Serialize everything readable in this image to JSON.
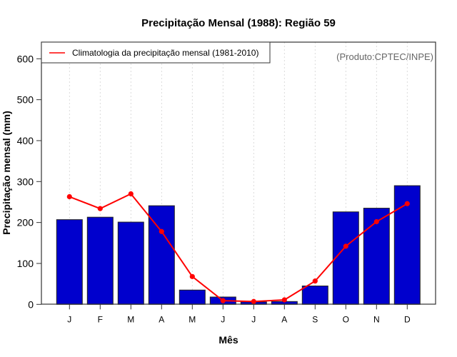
{
  "chart_data": {
    "type": "bar",
    "title": "Precipitação Mensal (1988): Região 59",
    "xlabel": "Mês",
    "ylabel": "Precipitação mensal (mm)",
    "ylim": [
      0,
      600
    ],
    "yticks": [
      0,
      100,
      200,
      300,
      400,
      500,
      600
    ],
    "grid": "vertical-dotted",
    "categories": [
      "J",
      "F",
      "M",
      "A",
      "M",
      "J",
      "J",
      "A",
      "S",
      "O",
      "N",
      "D"
    ],
    "series": [
      {
        "name": "Precipitação mensal (1988)",
        "type": "bar",
        "color": "#0000CD",
        "values": [
          207,
          213,
          201,
          241,
          35,
          18,
          6,
          7,
          45,
          226,
          235,
          290
        ]
      },
      {
        "name": "Climatologia da precipitação mensal (1981-2010)",
        "type": "line",
        "color": "#FF0000",
        "values": [
          263,
          234,
          270,
          178,
          68,
          9,
          7,
          11,
          57,
          142,
          202,
          246
        ]
      }
    ],
    "legend": {
      "placement": "top-left",
      "entries": [
        "Climatologia da precipitação mensal (1981-2010)"
      ]
    },
    "annotation": "(Produto:CPTEC/INPE)"
  }
}
